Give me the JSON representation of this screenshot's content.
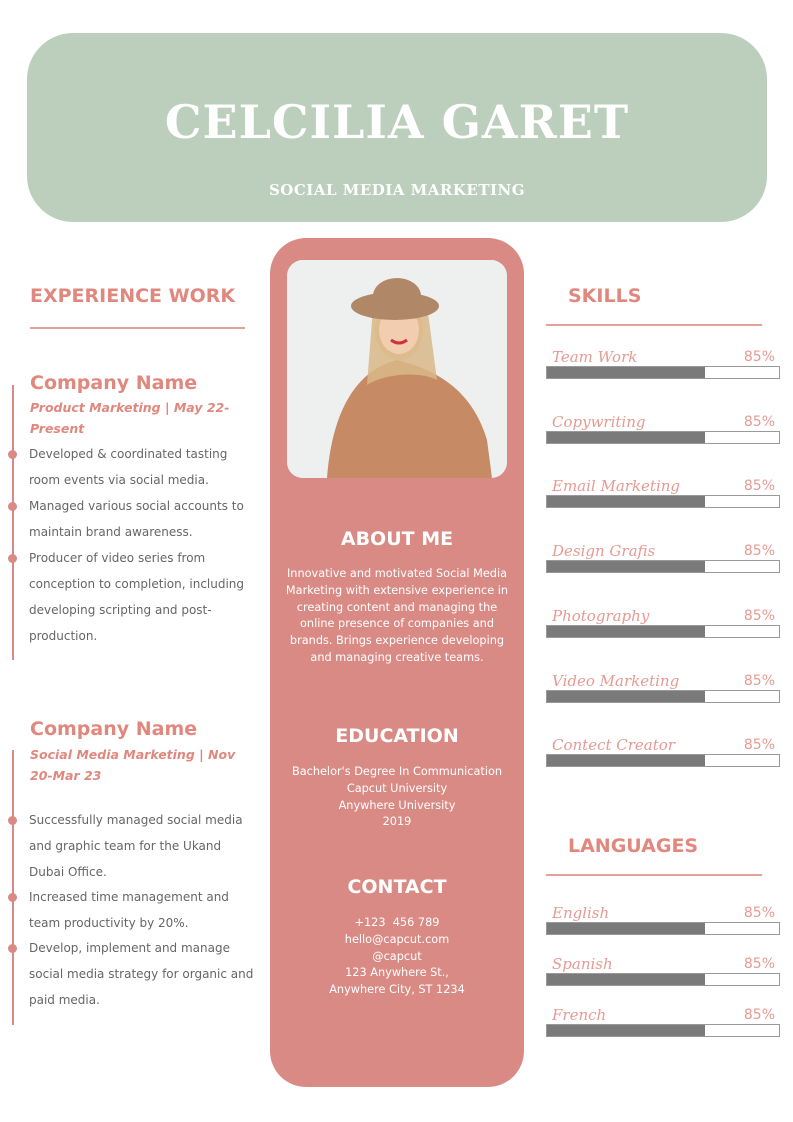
{
  "header": {
    "name": "CELCILIA GARET",
    "role": "SOCIAL MEDIA MARKETING"
  },
  "colors": {
    "header": "#bccfbc",
    "accent": "#d98a84",
    "heading": "#e0877e",
    "bar": "#7a7a7a"
  },
  "experience": {
    "heading": "EXPERIENCE WORK",
    "jobs": [
      {
        "company": "Company Name",
        "subtitle": "Product Marketing | May 22-Present",
        "bullets": [
          "Developed & coordinated tasting room events via social media.",
          "Managed various social accounts to maintain brand awareness.",
          "Producer of video series from conception to completion, including developing scripting and post-production."
        ]
      },
      {
        "company": "Company Name",
        "subtitle": "Social Media Marketing | Nov 20-Mar 23",
        "bullets": [
          "Successfully managed social media and graphic team for the Ukand Dubai Office.",
          "Increased time management and team productivity by 20%.",
          "Develop, implement and manage social media strategy for organic and paid media."
        ]
      }
    ]
  },
  "about": {
    "heading": "ABOUT ME",
    "text": "Innovative and motivated Social Media Marketing with extensive experience in creating content and managing the online presence of companies and brands. Brings experience developing and managing creative teams."
  },
  "education": {
    "heading": "EDUCATION",
    "lines": [
      "Bachelor's Degree In Communication",
      "Capcut University",
      "Anywhere University",
      "2019"
    ]
  },
  "contact": {
    "heading": "CONTACT",
    "lines": [
      "+123  456 789",
      "hello@capcut.com",
      "@capcut",
      "123 Anywhere St.,",
      "Anywhere City, ST 1234"
    ]
  },
  "skills": {
    "heading": "SKILLS",
    "items": [
      {
        "label": "Team Work",
        "percent": "85%",
        "fill": 0.68
      },
      {
        "label": "Copywriting",
        "percent": "85%",
        "fill": 0.68
      },
      {
        "label": "Email Marketing",
        "percent": "85%",
        "fill": 0.68
      },
      {
        "label": "Design Grafis",
        "percent": "85%",
        "fill": 0.68
      },
      {
        "label": "Photography",
        "percent": "85%",
        "fill": 0.68
      },
      {
        "label": "Video Marketing",
        "percent": "85%",
        "fill": 0.68
      },
      {
        "label": "Contect Creator",
        "percent": "85%",
        "fill": 0.68
      }
    ]
  },
  "languages": {
    "heading": "LANGUAGES",
    "items": [
      {
        "label": "English",
        "percent": "85%",
        "fill": 0.68
      },
      {
        "label": "Spanish",
        "percent": "85%",
        "fill": 0.68
      },
      {
        "label": "French",
        "percent": "85%",
        "fill": 0.68
      }
    ]
  }
}
